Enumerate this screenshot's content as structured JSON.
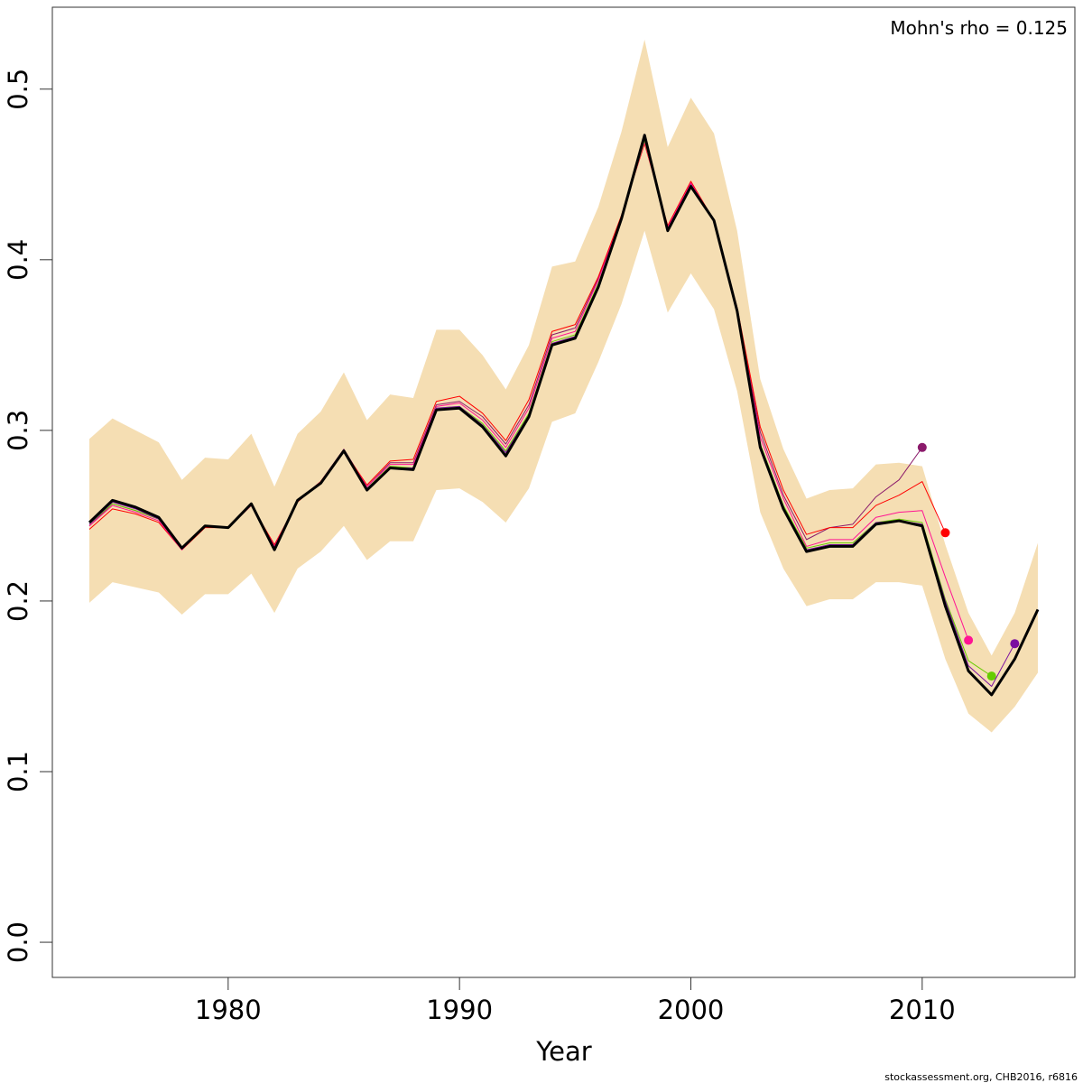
{
  "chart_data": {
    "type": "line",
    "xlabel": "Year",
    "annotation": "Mohn's rho = 0.125",
    "footer": "stockassessment.org, CHB2016, r6816",
    "x": [
      1974,
      1975,
      1976,
      1977,
      1978,
      1979,
      1980,
      1981,
      1982,
      1983,
      1984,
      1985,
      1986,
      1987,
      1988,
      1989,
      1990,
      1991,
      1992,
      1993,
      1994,
      1995,
      1996,
      1997,
      1998,
      1999,
      2000,
      2001,
      2002,
      2003,
      2004,
      2005,
      2006,
      2007,
      2008,
      2009,
      2010,
      2011,
      2012,
      2013,
      2014,
      2015
    ],
    "band": {
      "color": "#f5deb3",
      "upper": [
        0.295,
        0.307,
        0.3,
        0.293,
        0.271,
        0.284,
        0.283,
        0.298,
        0.267,
        0.298,
        0.311,
        0.334,
        0.306,
        0.321,
        0.319,
        0.359,
        0.359,
        0.344,
        0.324,
        0.35,
        0.396,
        0.399,
        0.431,
        0.475,
        0.529,
        0.466,
        0.495,
        0.474,
        0.417,
        0.33,
        0.289,
        0.26,
        0.265,
        0.266,
        0.28,
        0.281,
        0.279,
        0.233,
        0.193,
        0.168,
        0.193,
        0.234
      ],
      "lower": [
        0.199,
        0.211,
        0.208,
        0.205,
        0.192,
        0.204,
        0.204,
        0.216,
        0.193,
        0.219,
        0.229,
        0.244,
        0.224,
        0.235,
        0.235,
        0.265,
        0.266,
        0.258,
        0.246,
        0.266,
        0.305,
        0.31,
        0.34,
        0.374,
        0.417,
        0.369,
        0.392,
        0.371,
        0.323,
        0.252,
        0.219,
        0.197,
        0.201,
        0.201,
        0.211,
        0.211,
        0.209,
        0.166,
        0.134,
        0.123,
        0.138,
        0.158
      ]
    },
    "series": [
      {
        "color": "#8b1a6b",
        "end_marker": true,
        "values": [
          0.244,
          0.257,
          0.253,
          0.248,
          0.231,
          0.244,
          0.243,
          0.257,
          0.232,
          0.259,
          0.27,
          0.289,
          0.267,
          0.281,
          0.281,
          0.315,
          0.317,
          0.308,
          0.292,
          0.315,
          0.356,
          0.36,
          0.389,
          0.425,
          0.469,
          0.419,
          0.445,
          0.423,
          0.371,
          0.299,
          0.262,
          0.236,
          0.243,
          0.245,
          0.261,
          0.271,
          0.29,
          null,
          null,
          null,
          null,
          null
        ]
      },
      {
        "color": "#ff0000",
        "end_marker": true,
        "values": [
          0.242,
          0.254,
          0.251,
          0.246,
          0.23,
          0.243,
          0.243,
          0.256,
          0.233,
          0.258,
          0.27,
          0.288,
          0.268,
          0.282,
          0.283,
          0.317,
          0.32,
          0.31,
          0.294,
          0.318,
          0.358,
          0.362,
          0.39,
          0.426,
          0.468,
          0.42,
          0.446,
          0.423,
          0.372,
          0.302,
          0.265,
          0.239,
          0.243,
          0.243,
          0.256,
          0.262,
          0.27,
          0.24,
          null,
          null,
          null,
          null
        ]
      },
      {
        "color": "#ff1493",
        "end_marker": true,
        "values": [
          0.244,
          0.256,
          0.252,
          0.247,
          0.23,
          0.244,
          0.243,
          0.256,
          0.232,
          0.259,
          0.269,
          0.288,
          0.267,
          0.28,
          0.28,
          0.314,
          0.316,
          0.306,
          0.29,
          0.313,
          0.354,
          0.358,
          0.388,
          0.425,
          0.469,
          0.419,
          0.445,
          0.423,
          0.371,
          0.296,
          0.26,
          0.232,
          0.236,
          0.236,
          0.249,
          0.252,
          0.253,
          0.214,
          0.177,
          null,
          null,
          null
        ]
      },
      {
        "color": "#66cc00",
        "end_marker": true,
        "values": [
          0.245,
          0.257,
          0.253,
          0.248,
          0.231,
          0.244,
          0.243,
          0.257,
          0.231,
          0.259,
          0.269,
          0.288,
          0.266,
          0.279,
          0.278,
          0.313,
          0.314,
          0.304,
          0.288,
          0.31,
          0.352,
          0.356,
          0.386,
          0.424,
          0.47,
          0.418,
          0.444,
          0.423,
          0.37,
          0.292,
          0.256,
          0.231,
          0.234,
          0.234,
          0.246,
          0.248,
          0.246,
          0.201,
          0.165,
          0.156,
          null,
          null
        ]
      },
      {
        "color": "#7b0fa0",
        "end_marker": true,
        "values": [
          0.245,
          0.258,
          0.254,
          0.248,
          0.231,
          0.244,
          0.243,
          0.257,
          0.231,
          0.259,
          0.269,
          0.288,
          0.266,
          0.278,
          0.278,
          0.313,
          0.314,
          0.303,
          0.287,
          0.309,
          0.351,
          0.355,
          0.385,
          0.424,
          0.471,
          0.418,
          0.444,
          0.423,
          0.37,
          0.291,
          0.255,
          0.23,
          0.233,
          0.233,
          0.246,
          0.247,
          0.245,
          0.2,
          0.162,
          0.15,
          0.175,
          null
        ]
      },
      {
        "color": "#000000",
        "end_marker": false,
        "values": [
          0.246,
          0.259,
          0.255,
          0.249,
          0.231,
          0.244,
          0.243,
          0.257,
          0.23,
          0.259,
          0.269,
          0.288,
          0.265,
          0.278,
          0.277,
          0.312,
          0.313,
          0.302,
          0.285,
          0.308,
          0.35,
          0.354,
          0.384,
          0.424,
          0.473,
          0.417,
          0.443,
          0.423,
          0.37,
          0.29,
          0.254,
          0.229,
          0.232,
          0.232,
          0.245,
          0.247,
          0.244,
          0.197,
          0.159,
          0.145,
          0.166,
          0.195
        ]
      }
    ],
    "xlim": [
      1972.4,
      2016.6
    ],
    "xticks": [
      1980,
      1990,
      2000,
      2010
    ],
    "ylim": [
      -0.0206,
      0.548
    ],
    "yticks": [
      {
        "value": 0,
        "label": "0.0"
      },
      0.1,
      0.2,
      0.3,
      0.4,
      0.5
    ]
  }
}
